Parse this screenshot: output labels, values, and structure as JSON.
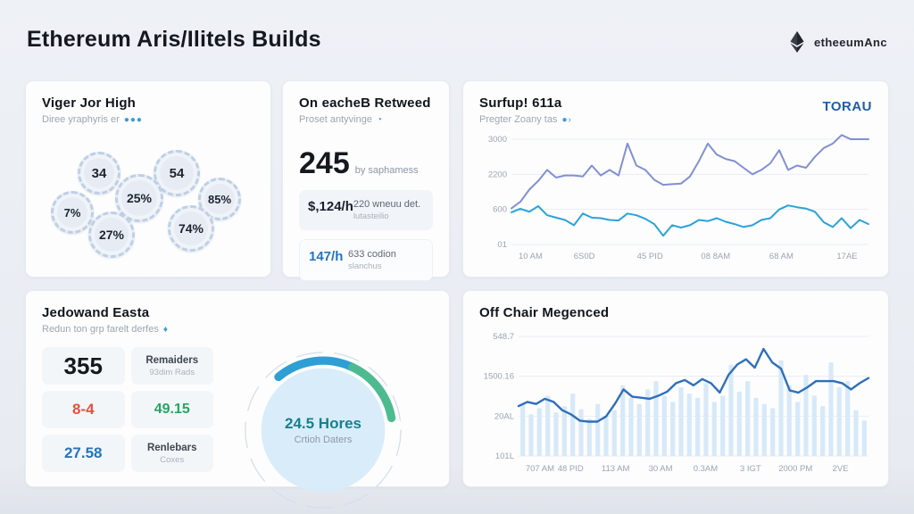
{
  "header": {
    "title": "Ethereum Aris/Ilitels Builds",
    "brand": "etheeumAnc"
  },
  "cards": {
    "gears": {
      "title": "Viger Jor High",
      "subtitle": "Diree yraphyris er",
      "items": [
        {
          "value": "34"
        },
        {
          "value": "54"
        },
        {
          "value": "25%"
        },
        {
          "value": "85%"
        },
        {
          "value": "7%"
        },
        {
          "value": "27%"
        },
        {
          "value": "74%"
        }
      ]
    },
    "retweed": {
      "title": "On eacheB Retweed",
      "subtitle": "Proset antyvinge",
      "big_number": "245",
      "big_caption": "by saphamess",
      "rows": [
        {
          "main": "$,124/h",
          "side1": "220 wneuu det.",
          "side2": "lutasteilio"
        },
        {
          "main": "147/h",
          "side1": "633 codion",
          "side2": "slanchus"
        }
      ]
    },
    "surfup": {
      "title": "Surfup! 611a",
      "subtitle": "Pregter Zoany tas",
      "legend_tag": "TORAU"
    },
    "jedow": {
      "title": "Jedowand Easta",
      "subtitle": "Redun ton grp farelt derfes",
      "rows": [
        {
          "a": "355",
          "b1": "Remaiders",
          "b2": "93dim Rads"
        },
        {
          "a": "8-4",
          "b": "49.15"
        },
        {
          "a": "27.58",
          "b1": "Renlebars",
          "b2": "Coxes"
        }
      ],
      "gauge": {
        "value": "24.5 Hores",
        "caption": "Crtioh Daters"
      }
    },
    "offchair": {
      "title": "Off Chair Megenced"
    }
  },
  "chart_data": [
    {
      "id": "surfup-lines",
      "type": "line",
      "title": "Surfup! 611a",
      "legend": [
        "TORAU"
      ],
      "legend_position": "top-right",
      "grid": true,
      "y_ticks": [
        "3000",
        "2200",
        "600",
        "01"
      ],
      "y_tick_values": [
        3000,
        2200,
        600,
        1
      ],
      "x_ticks": [
        "10 AM",
        "6S0D",
        "45 PID",
        "08 8AM",
        "68 AM",
        "17AE"
      ],
      "ylim": [
        0,
        3300
      ],
      "series": [
        {
          "name": "primary",
          "color": "#8190d2",
          "values": [
            650,
            950,
            1500,
            1900,
            2300,
            2050,
            2150,
            2150,
            2100,
            2400,
            2150,
            2300,
            2150,
            2900,
            2400,
            2300,
            1950,
            1720,
            1750,
            1780,
            2100,
            2500,
            2900,
            2650,
            2550,
            2500,
            2350,
            2200,
            2300,
            2450,
            2750,
            2300,
            2400,
            2350,
            2600,
            2800,
            2900,
            3100,
            3000,
            3000,
            3000
          ]
        },
        {
          "name": "secondary",
          "color": "#2aa3d9",
          "values": [
            550,
            630,
            560,
            750,
            500,
            460,
            420,
            330,
            530,
            460,
            450,
            420,
            410,
            530,
            500,
            440,
            350,
            150,
            330,
            290,
            330,
            420,
            400,
            450,
            390,
            350,
            300,
            330,
            420,
            450,
            600,
            780,
            700,
            640,
            560,
            380,
            300,
            450,
            280,
            420,
            350
          ]
        }
      ]
    },
    {
      "id": "offchair-mixed",
      "type": "bar+line",
      "title": "Off Chair Megenced",
      "grid": true,
      "y_ticks": [
        "548.7",
        "1500.16",
        "20AL",
        "101L"
      ],
      "x_ticks": [
        "707 AM",
        "48 PID",
        "113 AM",
        "30 AM",
        "0.3AM",
        "3 IGT",
        "2000 PM",
        "2VE"
      ],
      "ylim": [
        0,
        115
      ],
      "bars": {
        "color": "#d7e9f8",
        "values": [
          50,
          40,
          46,
          58,
          42,
          48,
          60,
          45,
          36,
          50,
          38,
          44,
          68,
          56,
          50,
          64,
          72,
          58,
          52,
          66,
          60,
          56,
          70,
          52,
          58,
          88,
          62,
          72,
          56,
          50,
          46,
          92,
          68,
          52,
          78,
          58,
          48,
          90,
          66,
          72,
          44,
          34
        ]
      },
      "line": {
        "color": "#2e6fba",
        "values": [
          48,
          52,
          50,
          55,
          52,
          44,
          40,
          34,
          33,
          33,
          38,
          50,
          64,
          57,
          56,
          55,
          58,
          62,
          70,
          73,
          68,
          74,
          70,
          61,
          78,
          88,
          93,
          85,
          103,
          90,
          84,
          63,
          61,
          66,
          72,
          72,
          72,
          70,
          64,
          70,
          75
        ]
      }
    }
  ],
  "colors": {
    "accent_blue": "#2574c0",
    "legend_blue": "#1f5ea9",
    "line_indigo": "#8190d2",
    "line_cyan": "#2aa3d9",
    "bar_light": "#d7e9f8",
    "line_dark": "#2e6fba",
    "red": "#e8503a",
    "green": "#27a563",
    "teal": "#17808d",
    "gauge_fill": "#d9ecf9",
    "gauge_arc_blue": "#2d9fd4",
    "gauge_arc_green": "#4dbb8f"
  }
}
